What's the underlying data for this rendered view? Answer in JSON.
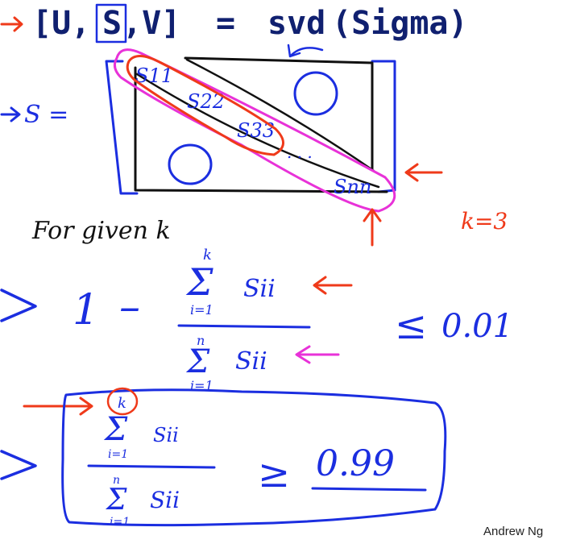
{
  "code": {
    "bracket_open": "[U,",
    "S": "S",
    "rest": ",V]",
    "equals": "=",
    "func": "svd",
    "args": "(Sigma)"
  },
  "matrix": {
    "label": "S =",
    "s11": "S11",
    "s22": "S22",
    "s33": "S33",
    "dots": ". . .",
    "snn": "Snn"
  },
  "k_value": "k=3",
  "for_given": "For given k",
  "formula1": {
    "one": "1",
    "minus": "–",
    "sum_upper": "k",
    "sum_lower": "i=1",
    "sum_upper2": "n",
    "sum_lower2": "i=1",
    "term": "Sii",
    "leq": "≤",
    "threshold": "0.01"
  },
  "formula2": {
    "sum_upper": "k",
    "sum_lower": "i=1",
    "sum_upper2": "n",
    "sum_lower2": "i=1",
    "term": "Sii",
    "geq": "≥",
    "threshold": "0.99"
  },
  "credit": "Andrew Ng",
  "colors": {
    "ink": "#111111",
    "blue": "#1b2ee0",
    "red": "#ef3a1a",
    "pink": "#e832d8"
  }
}
